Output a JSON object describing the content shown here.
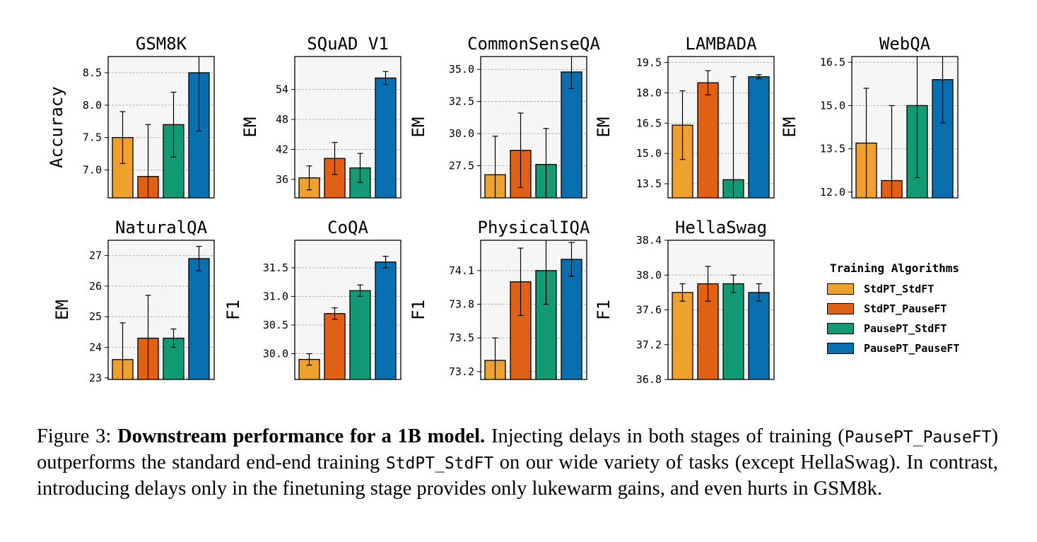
{
  "legend": {
    "title": "Training Algorithms",
    "items": [
      {
        "label": "StdPT_StdFT",
        "color": "#efa12e"
      },
      {
        "label": "StdPT_PauseFT",
        "color": "#e06014"
      },
      {
        "label": "PausePT_StdFT",
        "color": "#139a74"
      },
      {
        "label": "PausePT_PauseFT",
        "color": "#0a6fae"
      }
    ]
  },
  "caption": {
    "prefix": "Figure 3: ",
    "bold": "Downstream performance for a 1B model.",
    "text1": " Injecting delays in both stages of training (",
    "mono1": "PausePT_PauseFT",
    "text2": ") outperforms the standard end-end training ",
    "mono2": "StdPT_StdFT",
    "text3": " on our wide variety of tasks (except HellaSwag). In contrast, introducing delays only in the finetuning stage provides only lukewarm gains, and even hurts in GSM8k."
  },
  "chart_data": [
    {
      "type": "bar",
      "title": "GSM8K",
      "ylabel": "Accuracy",
      "categories": [
        "StdPT_StdFT",
        "StdPT_PauseFT",
        "PausePT_StdFT",
        "PausePT_PauseFT"
      ],
      "values": [
        7.5,
        6.9,
        7.7,
        8.5
      ],
      "errors": [
        0.4,
        0.8,
        0.5,
        0.9
      ],
      "ylim": [
        6.57,
        8.75
      ],
      "yticks": [
        7.0,
        7.5,
        8.0,
        8.5
      ],
      "tick_decimals": 1,
      "grid": true
    },
    {
      "type": "bar",
      "title": "SQuAD V1",
      "ylabel": "EM",
      "categories": [
        "StdPT_StdFT",
        "StdPT_PauseFT",
        "PausePT_StdFT",
        "PausePT_PauseFT"
      ],
      "values": [
        36.3,
        40.2,
        38.3,
        56.3
      ],
      "errors": [
        2.4,
        3.2,
        2.9,
        1.3
      ],
      "ylim": [
        32.3,
        60.6
      ],
      "yticks": [
        36,
        42,
        48,
        54
      ],
      "tick_decimals": 0,
      "grid": true
    },
    {
      "type": "bar",
      "title": "CommonSenseQA",
      "ylabel": "EM",
      "categories": [
        "StdPT_StdFT",
        "StdPT_PauseFT",
        "PausePT_StdFT",
        "PausePT_PauseFT"
      ],
      "values": [
        26.8,
        28.7,
        27.6,
        34.8
      ],
      "errors": [
        3.0,
        2.9,
        2.8,
        1.3
      ],
      "ylim": [
        25.0,
        36.0
      ],
      "yticks": [
        27.5,
        30.0,
        32.5,
        35.0
      ],
      "tick_decimals": 1,
      "grid": true
    },
    {
      "type": "bar",
      "title": "LAMBADA",
      "ylabel": "EM",
      "categories": [
        "StdPT_StdFT",
        "StdPT_PauseFT",
        "PausePT_StdFT",
        "PausePT_PauseFT"
      ],
      "values": [
        16.4,
        18.5,
        13.7,
        18.8
      ],
      "errors": [
        1.7,
        0.6,
        5.1,
        0.1
      ],
      "ylim": [
        12.8,
        19.8
      ],
      "yticks": [
        13.5,
        15.0,
        16.5,
        18.0,
        19.5
      ],
      "tick_decimals": 1,
      "grid": true
    },
    {
      "type": "bar",
      "title": "WebQA",
      "ylabel": "EM",
      "categories": [
        "StdPT_StdFT",
        "StdPT_PauseFT",
        "PausePT_StdFT",
        "PausePT_PauseFT"
      ],
      "values": [
        13.7,
        12.4,
        15.0,
        15.9
      ],
      "errors": [
        1.9,
        2.6,
        2.5,
        1.5
      ],
      "ylim": [
        11.8,
        16.7
      ],
      "yticks": [
        12.0,
        13.5,
        15.0,
        16.5
      ],
      "tick_decimals": 1,
      "grid": true
    },
    {
      "type": "bar",
      "title": "NaturalQA",
      "ylabel": "EM",
      "categories": [
        "StdPT_StdFT",
        "StdPT_PauseFT",
        "PausePT_StdFT",
        "PausePT_PauseFT"
      ],
      "values": [
        23.6,
        24.3,
        24.3,
        26.9
      ],
      "errors": [
        1.2,
        1.4,
        0.3,
        0.4
      ],
      "ylim": [
        22.95,
        27.5
      ],
      "yticks": [
        23,
        24,
        25,
        26,
        27
      ],
      "tick_decimals": 0,
      "grid": true
    },
    {
      "type": "bar",
      "title": "CoQA",
      "ylabel": "F1",
      "categories": [
        "StdPT_StdFT",
        "StdPT_PauseFT",
        "PausePT_StdFT",
        "PausePT_PauseFT"
      ],
      "values": [
        29.9,
        30.7,
        31.1,
        31.6
      ],
      "errors": [
        0.1,
        0.1,
        0.1,
        0.1
      ],
      "ylim": [
        29.55,
        31.98
      ],
      "yticks": [
        30.0,
        30.5,
        31.0,
        31.5
      ],
      "tick_decimals": 1,
      "grid": true
    },
    {
      "type": "bar",
      "title": "PhysicalIQA",
      "ylabel": "F1",
      "categories": [
        "StdPT_StdFT",
        "StdPT_PauseFT",
        "PausePT_StdFT",
        "PausePT_PauseFT"
      ],
      "values": [
        73.3,
        74.0,
        74.1,
        74.2
      ],
      "errors": [
        0.2,
        0.3,
        0.3,
        0.15
      ],
      "ylim": [
        73.13,
        74.37
      ],
      "yticks": [
        73.2,
        73.5,
        73.8,
        74.1
      ],
      "tick_decimals": 1,
      "grid": true
    },
    {
      "type": "bar",
      "title": "HellaSwag",
      "ylabel": "F1",
      "categories": [
        "StdPT_StdFT",
        "StdPT_PauseFT",
        "PausePT_StdFT",
        "PausePT_PauseFT"
      ],
      "values": [
        37.8,
        37.9,
        37.9,
        37.8
      ],
      "errors": [
        0.1,
        0.2,
        0.1,
        0.1
      ],
      "ylim": [
        36.8,
        38.4
      ],
      "yticks": [
        36.8,
        37.2,
        37.6,
        38.0,
        38.4
      ],
      "tick_decimals": 1,
      "grid": true
    }
  ]
}
